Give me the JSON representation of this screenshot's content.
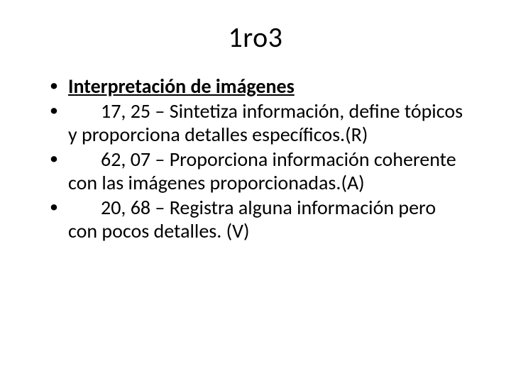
{
  "title": "1ro3",
  "background_color": "#ffffff",
  "text_color": "#000000",
  "title_fontsize": 40,
  "body_fontsize": 28,
  "bullets": {
    "heading": "Interpretación de imágenes",
    "items": [
      {
        "value": "17, 25",
        "text": "Sintetiza información, define tópicos y proporciona detalles específicos.",
        "tag": "(R)"
      },
      {
        "value": "62, 07",
        "text": "Proporciona información coherente con las imágenes proporcionadas.",
        "tag": "(A)"
      },
      {
        "value": "20, 68",
        "text": "Registra alguna información  pero con pocos detalles.",
        "tag": "(V)"
      }
    ]
  }
}
